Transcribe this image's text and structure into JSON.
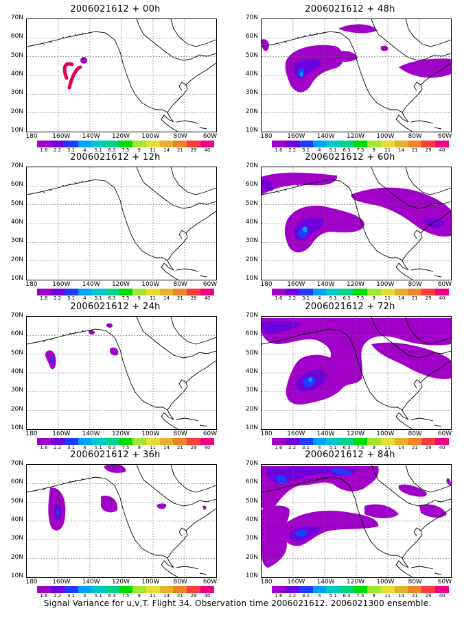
{
  "panels": [
    {
      "title": "2006021612 + 00h",
      "signal": "t00"
    },
    {
      "title": "2006021612 + 48h",
      "signal": "t48"
    },
    {
      "title": "2006021612 + 12h",
      "signal": "t12"
    },
    {
      "title": "2006021612 + 60h",
      "signal": "t60"
    },
    {
      "title": "2006021612 + 24h",
      "signal": "t24"
    },
    {
      "title": "2006021612 + 72h",
      "signal": "t72"
    },
    {
      "title": "2006021612 + 36h",
      "signal": "t36"
    },
    {
      "title": "2006021612 + 84h",
      "signal": "t84"
    }
  ],
  "axes": {
    "lat_labels": [
      "70N",
      "60N",
      "50N",
      "40N",
      "30N",
      "20N",
      "10N"
    ],
    "lon_labels": [
      "180",
      "160W",
      "140W",
      "120W",
      "100W",
      "80W",
      "60W"
    ]
  },
  "colorbar": {
    "labels": [
      "1.6",
      "2.2",
      "3.1",
      "4",
      "5.1",
      "6.3",
      "7.5",
      "9",
      "11",
      "14",
      "21",
      "29",
      "40"
    ],
    "colors": [
      "#a000c8",
      "#6e00dc",
      "#1e3cff",
      "#00a0ff",
      "#00c8c8",
      "#00d28c",
      "#00dc00",
      "#a0e632",
      "#e6dc32",
      "#e6af2d",
      "#f08228",
      "#fa3c3c",
      "#f00082"
    ]
  },
  "caption": "Signal Variance for u,v,T. Flight 34. Observation time 2006021612. 2006021300 ensemble."
}
